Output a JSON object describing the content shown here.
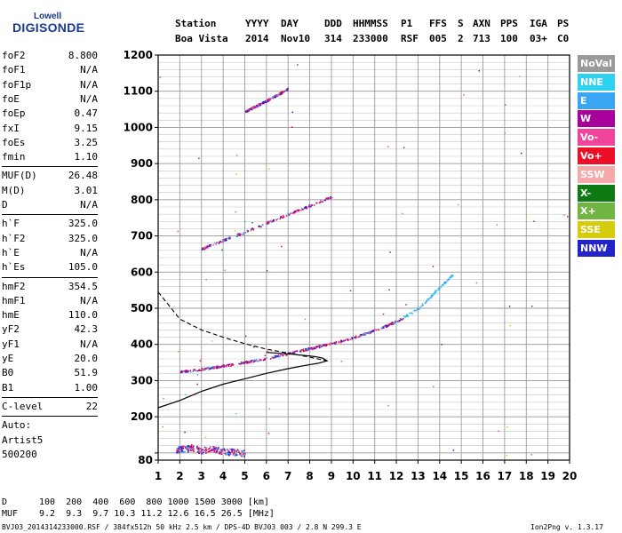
{
  "logo": {
    "line1": "Lowell",
    "line2": "DIGISONDE"
  },
  "header": {
    "labels": [
      "Station",
      "YYYY",
      "DAY",
      "DDD",
      "HHMMSS",
      "P1",
      "FFS",
      "S",
      "AXN",
      "PPS",
      "IGA",
      "PS"
    ],
    "values": [
      "Boa Vista",
      "2014",
      "Nov10",
      "314",
      "233000",
      "RSF",
      "005",
      "2",
      "713",
      "100",
      "03+",
      "C0"
    ]
  },
  "params": [
    {
      "group": [
        {
          "k": "foF2",
          "v": "8.800"
        },
        {
          "k": "foF1",
          "v": "N/A"
        },
        {
          "k": "foF1p",
          "v": "N/A"
        },
        {
          "k": "foE",
          "v": "N/A"
        },
        {
          "k": "foEp",
          "v": "0.47"
        },
        {
          "k": "fxI",
          "v": "9.15"
        },
        {
          "k": "foEs",
          "v": "3.25"
        },
        {
          "k": "fmin",
          "v": "1.10"
        }
      ]
    },
    {
      "group": [
        {
          "k": "MUF(D)",
          "v": "26.48"
        },
        {
          "k": "M(D)",
          "v": "3.01"
        },
        {
          "k": "D",
          "v": "N/A"
        }
      ]
    },
    {
      "group": [
        {
          "k": "h`F",
          "v": "325.0"
        },
        {
          "k": "h`F2",
          "v": "325.0"
        },
        {
          "k": "h`E",
          "v": "N/A"
        },
        {
          "k": "h`Es",
          "v": "105.0"
        }
      ]
    },
    {
      "group": [
        {
          "k": "hmF2",
          "v": "354.5"
        },
        {
          "k": "hmF1",
          "v": "N/A"
        },
        {
          "k": "hmE",
          "v": "110.0"
        },
        {
          "k": "yF2",
          "v": "42.3"
        },
        {
          "k": "yF1",
          "v": "N/A"
        },
        {
          "k": "yE",
          "v": "20.0"
        },
        {
          "k": "B0",
          "v": "51.9"
        },
        {
          "k": "B1",
          "v": "1.00"
        }
      ]
    },
    {
      "group": [
        {
          "k": "C-level",
          "v": "22"
        }
      ]
    },
    {
      "group": [
        {
          "k": "Auto:",
          "v": ""
        },
        {
          "k": "Artist5",
          "v": ""
        },
        {
          "k": "500200",
          "v": ""
        }
      ]
    }
  ],
  "legend": [
    {
      "label": "NoVal",
      "color": "#9a9a9a"
    },
    {
      "label": "NNE",
      "color": "#2fd3f0"
    },
    {
      "label": "E",
      "color": "#3aa5f2"
    },
    {
      "label": "W",
      "color": "#a7009b"
    },
    {
      "label": "Vo-",
      "color": "#f0459b"
    },
    {
      "label": "Vo+",
      "color": "#ec0f27"
    },
    {
      "label": "SSW",
      "color": "#f3aaa8"
    },
    {
      "label": "X-",
      "color": "#0d7a13"
    },
    {
      "label": "X+",
      "color": "#72b545"
    },
    {
      "label": "SSE",
      "color": "#d6cc0e"
    },
    {
      "label": "NNW",
      "color": "#2323cc"
    }
  ],
  "chart_data": {
    "type": "scatter",
    "xlabel": "",
    "ylabel": "",
    "xlim": [
      1,
      20
    ],
    "ylim": [
      80,
      1200
    ],
    "xticks": [
      1,
      2,
      3,
      4,
      5,
      6,
      7,
      8,
      9,
      10,
      11,
      12,
      13,
      14,
      15,
      16,
      17,
      18,
      19,
      20
    ],
    "yticks": [
      80,
      100,
      200,
      300,
      400,
      500,
      600,
      700,
      800,
      900,
      1000,
      1100,
      1200
    ],
    "ytick_labels": [
      "80",
      "",
      "200",
      "300",
      "400",
      "500",
      "600",
      "700",
      "800",
      "900",
      "1000",
      "1100",
      "1200"
    ],
    "grid": true,
    "traces": [
      {
        "name": "F2 O-trace",
        "points": [
          [
            2,
            325
          ],
          [
            3,
            333
          ],
          [
            4,
            342
          ],
          [
            5,
            352
          ],
          [
            6,
            363
          ],
          [
            7,
            376
          ],
          [
            8,
            390
          ],
          [
            9,
            404
          ],
          [
            10,
            420
          ],
          [
            11,
            440
          ],
          [
            12,
            465
          ],
          [
            13,
            500
          ],
          [
            14,
            560
          ],
          [
            14.6,
            595
          ]
        ]
      },
      {
        "name": "2nd hop",
        "points": [
          [
            3,
            665
          ],
          [
            4,
            690
          ],
          [
            5,
            712
          ],
          [
            6,
            737
          ],
          [
            7,
            762
          ],
          [
            8,
            785
          ],
          [
            9,
            810
          ]
        ]
      },
      {
        "name": "3rd hop",
        "points": [
          [
            5,
            1045
          ],
          [
            6,
            1075
          ],
          [
            7,
            1108
          ]
        ]
      },
      {
        "name": "Es",
        "points": [
          [
            1.8,
            110
          ],
          [
            2.5,
            115
          ],
          [
            3,
            108
          ],
          [
            3.5,
            112
          ],
          [
            4,
            105
          ],
          [
            4.5,
            103
          ],
          [
            5,
            100
          ]
        ]
      }
    ],
    "profile_solid": [
      [
        1,
        225
      ],
      [
        2,
        245
      ],
      [
        3,
        270
      ],
      [
        4,
        290
      ],
      [
        5,
        305
      ],
      [
        6,
        320
      ],
      [
        7,
        333
      ],
      [
        7.8,
        342
      ],
      [
        8.4,
        348
      ],
      [
        8.8,
        354.5
      ],
      [
        8.6,
        362
      ],
      [
        8.3,
        366
      ],
      [
        8.0,
        368
      ],
      [
        7.0,
        374
      ],
      [
        6.0,
        378
      ]
    ],
    "profile_dashed": [
      [
        1,
        545
      ],
      [
        2,
        470
      ],
      [
        3,
        440
      ],
      [
        4,
        420
      ],
      [
        5,
        402
      ],
      [
        6,
        387
      ],
      [
        7,
        376
      ],
      [
        8,
        365
      ],
      [
        8.6,
        357
      ],
      [
        8.8,
        354.5
      ]
    ]
  },
  "distance_table": {
    "row1_label": "D",
    "row1": [
      "100",
      "200",
      "400",
      "600",
      "800",
      "1000",
      "1500",
      "3000"
    ],
    "row1_unit": "[km]",
    "row2_label": "MUF",
    "row2": [
      "9.2",
      "9.3",
      "9.7",
      "10.3",
      "11.2",
      "12.6",
      "16.5",
      "26.5"
    ],
    "row2_unit": "[MHz]"
  },
  "footer": {
    "left": "BVJ03_2014314233000.RSF / 384fx512h 50 kHz 2.5 km / DPS-4D BVJ03 003 / 2.8 N 299.3 E",
    "right": "Ion2Png v. 1.3.17"
  }
}
